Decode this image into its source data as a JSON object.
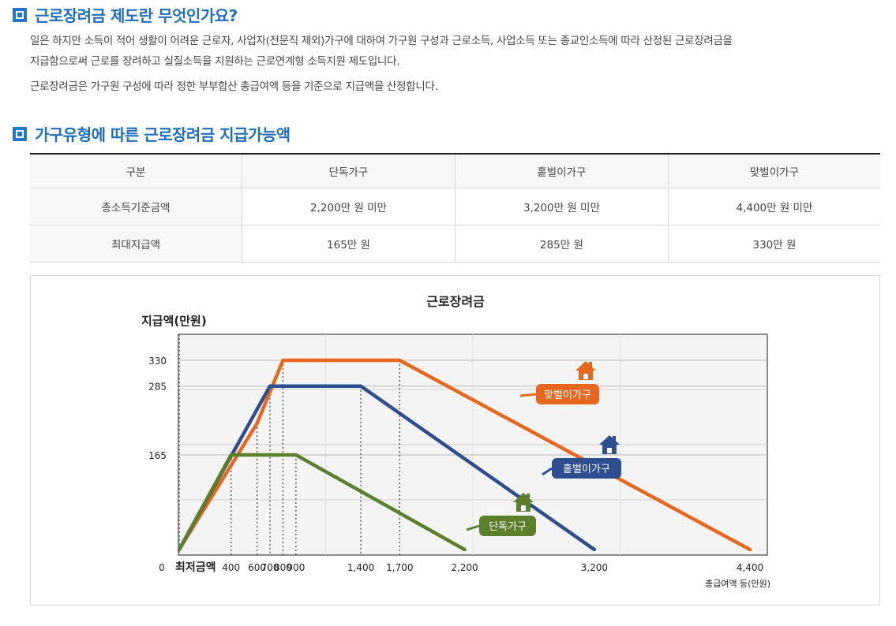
{
  "section1": {
    "title": "근로장려금 제도란 무엇인가요?",
    "para1_line1": "일은 하지만 소득이 적어 생활이 어려운 근로자, 사업자(전문직 제외)가구에 대하여 가구원 구성과 근로소득, 사업소득 또는 종교인소득에 따라 산정된 근로장려금을",
    "para1_line2": "지급함으로써 근로를 장려하고 실질소득을 지원하는 근로연계형 소득지원 제도입니다.",
    "para2": "근로장려금은 가구원 구성에 따라 정한 부부합산 총급여액 등을 기준으로 지급액을 산정합니다."
  },
  "section2": {
    "title": "가구유형에 따른 근로장려금 지급가능액"
  },
  "table": {
    "headers": [
      "구분",
      "단독가구",
      "홑벌이가구",
      "맞벌이가구"
    ],
    "rows": [
      [
        "총소득기준금액",
        "2,200만 원 미만",
        "3,200만 원 미만",
        "4,400만 원 미만"
      ],
      [
        "최대지급액",
        "165만 원",
        "285만 원",
        "330만 원"
      ]
    ]
  },
  "chart_data": {
    "type": "line",
    "title": "근로장려금",
    "ylabel": "지급액(만원)",
    "xlabel": "총급여액 등(만원)",
    "xlim": [
      0,
      4400
    ],
    "ylim": [
      0,
      330
    ],
    "x_ticks": [
      {
        "value": 0,
        "label": "0"
      },
      {
        "value": 400,
        "label": "400"
      },
      {
        "value": 600,
        "label": "600"
      },
      {
        "value": 700,
        "label": "700"
      },
      {
        "value": 800,
        "label": "800"
      },
      {
        "value": 900,
        "label": "900"
      },
      {
        "value": 1400,
        "label": "1,400"
      },
      {
        "value": 1700,
        "label": "1,700"
      },
      {
        "value": 2200,
        "label": "2,200"
      },
      {
        "value": 3200,
        "label": "3,200"
      },
      {
        "value": 4400,
        "label": "4,400"
      }
    ],
    "min_label": "최저금액",
    "y_ticks": [
      165,
      285,
      330
    ],
    "grid": true,
    "series": [
      {
        "name": "맞벌이가구",
        "color": "#e8671f",
        "x": [
          0,
          600,
          800,
          1700,
          4400
        ],
        "y": [
          0,
          220,
          330,
          330,
          0
        ]
      },
      {
        "name": "홑벌이가구",
        "color": "#2e4f8f",
        "x": [
          0,
          700,
          1400,
          3200
        ],
        "y": [
          0,
          285,
          285,
          0
        ]
      },
      {
        "name": "단독가구",
        "color": "#5b7f2a",
        "x": [
          0,
          400,
          900,
          2200
        ],
        "y": [
          0,
          165,
          165,
          0
        ]
      }
    ]
  }
}
